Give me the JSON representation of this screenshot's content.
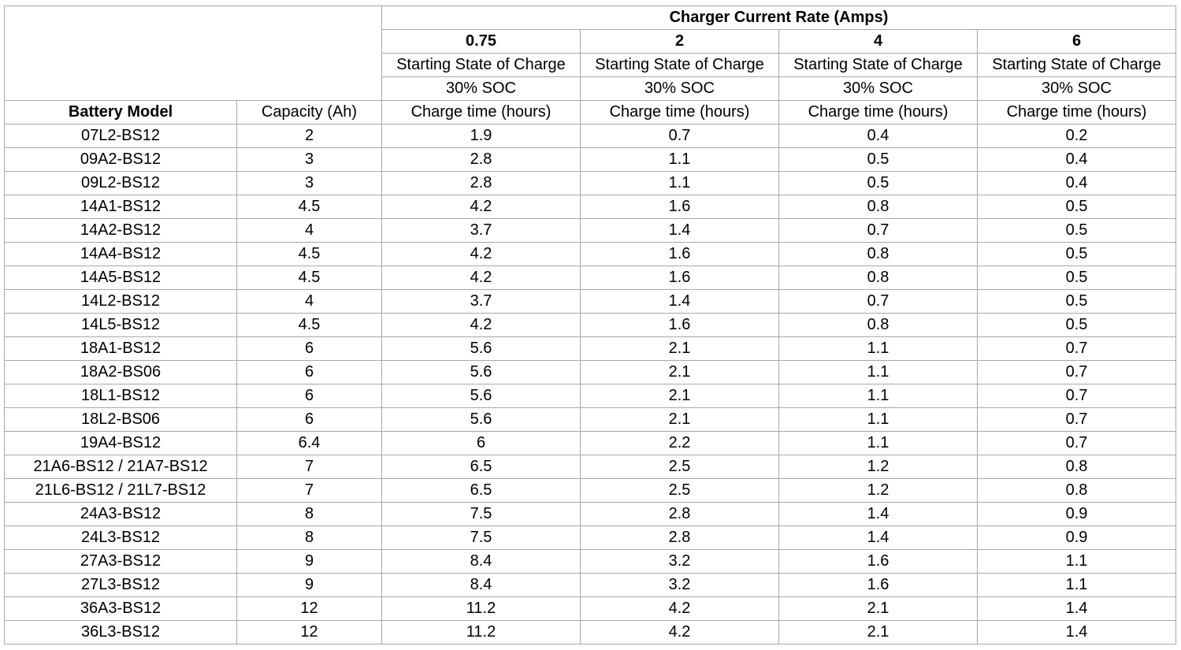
{
  "table": {
    "group_header": "Charger Current Rate (Amps)",
    "rates": [
      "0.75",
      "2",
      "4",
      "6"
    ],
    "state_label": "Starting State of Charge",
    "soc_label": "30% SOC",
    "headers": [
      "Battery Model",
      "Capacity (Ah)",
      "Charge time (hours)",
      "Charge time (hours)",
      "Charge time (hours)",
      "Charge time (hours)"
    ],
    "rows": [
      [
        "07L2-BS12",
        "2",
        "1.9",
        "0.7",
        "0.4",
        "0.2"
      ],
      [
        "09A2-BS12",
        "3",
        "2.8",
        "1.1",
        "0.5",
        "0.4"
      ],
      [
        "09L2-BS12",
        "3",
        "2.8",
        "1.1",
        "0.5",
        "0.4"
      ],
      [
        "14A1-BS12",
        "4.5",
        "4.2",
        "1.6",
        "0.8",
        "0.5"
      ],
      [
        "14A2-BS12",
        "4",
        "3.7",
        "1.4",
        "0.7",
        "0.5"
      ],
      [
        "14A4-BS12",
        "4.5",
        "4.2",
        "1.6",
        "0.8",
        "0.5"
      ],
      [
        "14A5-BS12",
        "4.5",
        "4.2",
        "1.6",
        "0.8",
        "0.5"
      ],
      [
        "14L2-BS12",
        "4",
        "3.7",
        "1.4",
        "0.7",
        "0.5"
      ],
      [
        "14L5-BS12",
        "4.5",
        "4.2",
        "1.6",
        "0.8",
        "0.5"
      ],
      [
        "18A1-BS12",
        "6",
        "5.6",
        "2.1",
        "1.1",
        "0.7"
      ],
      [
        "18A2-BS06",
        "6",
        "5.6",
        "2.1",
        "1.1",
        "0.7"
      ],
      [
        "18L1-BS12",
        "6",
        "5.6",
        "2.1",
        "1.1",
        "0.7"
      ],
      [
        "18L2-BS06",
        "6",
        "5.6",
        "2.1",
        "1.1",
        "0.7"
      ],
      [
        "19A4-BS12",
        "6.4",
        "6",
        "2.2",
        "1.1",
        "0.7"
      ],
      [
        "21A6-BS12 / 21A7-BS12",
        "7",
        "6.5",
        "2.5",
        "1.2",
        "0.8"
      ],
      [
        "21L6-BS12 / 21L7-BS12",
        "7",
        "6.5",
        "2.5",
        "1.2",
        "0.8"
      ],
      [
        "24A3-BS12",
        "8",
        "7.5",
        "2.8",
        "1.4",
        "0.9"
      ],
      [
        "24L3-BS12",
        "8",
        "7.5",
        "2.8",
        "1.4",
        "0.9"
      ],
      [
        "27A3-BS12",
        "9",
        "8.4",
        "3.2",
        "1.6",
        "1.1"
      ],
      [
        "27L3-BS12",
        "9",
        "8.4",
        "3.2",
        "1.6",
        "1.1"
      ],
      [
        "36A3-BS12",
        "12",
        "11.2",
        "4.2",
        "2.1",
        "1.4"
      ],
      [
        "36L3-BS12",
        "12",
        "11.2",
        "4.2",
        "2.1",
        "1.4"
      ]
    ]
  }
}
